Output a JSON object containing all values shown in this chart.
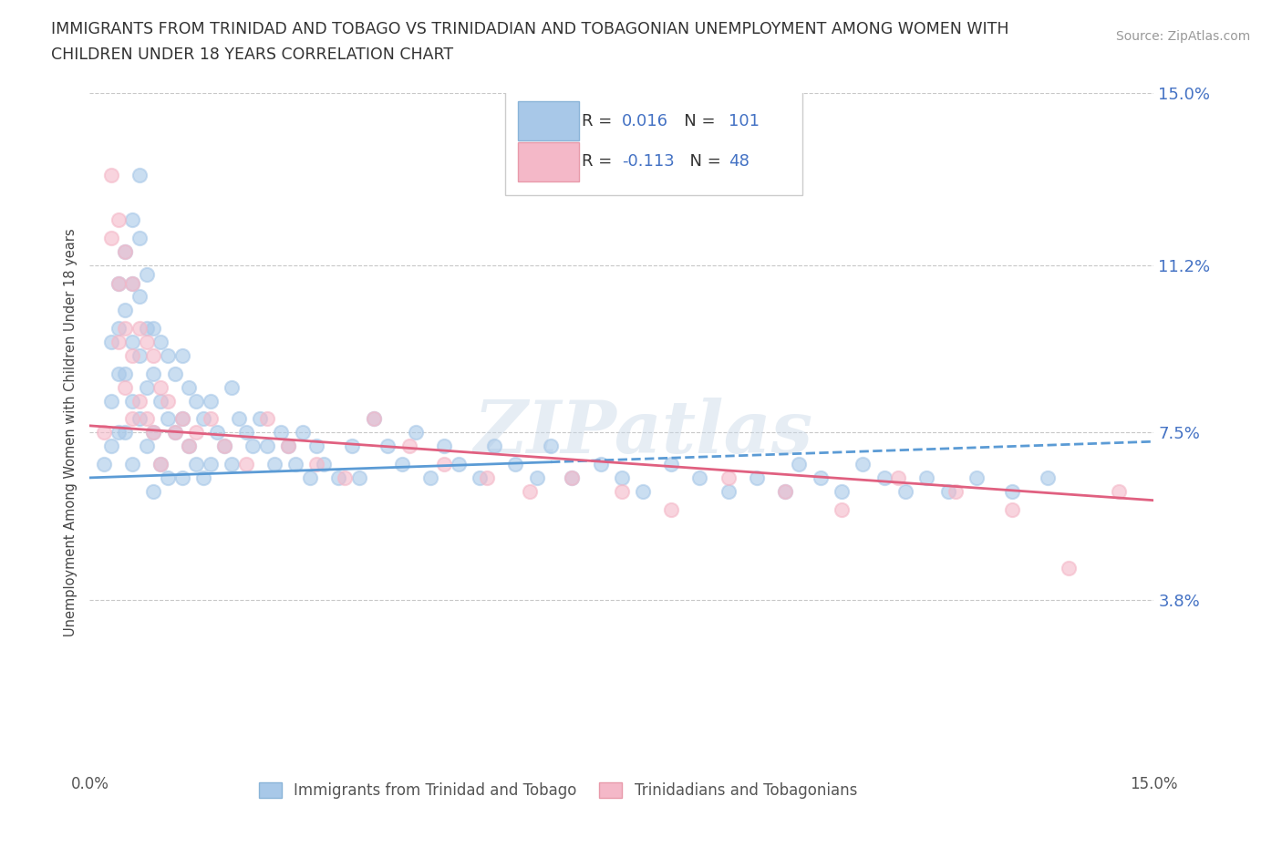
{
  "title_line1": "IMMIGRANTS FROM TRINIDAD AND TOBAGO VS TRINIDADIAN AND TOBAGONIAN UNEMPLOYMENT AMONG WOMEN WITH",
  "title_line2": "CHILDREN UNDER 18 YEARS CORRELATION CHART",
  "source": "Source: ZipAtlas.com",
  "ylabel": "Unemployment Among Women with Children Under 18 years",
  "xlim": [
    0.0,
    0.15
  ],
  "ylim": [
    0.0,
    0.15
  ],
  "ytick_positions": [
    0.0,
    0.038,
    0.075,
    0.112,
    0.15
  ],
  "ytick_labels": [
    "",
    "3.8%",
    "7.5%",
    "11.2%",
    "15.0%"
  ],
  "xtick_positions": [
    0.0,
    0.15
  ],
  "xtick_labels": [
    "0.0%",
    "15.0%"
  ],
  "hline_positions": [
    0.15,
    0.112,
    0.075,
    0.038
  ],
  "blue_line_color": "#5b9bd5",
  "pink_line_color": "#e06080",
  "blue_dot_color": "#a8c8e8",
  "pink_dot_color": "#f4b8c8",
  "R_blue": 0.016,
  "N_blue": 101,
  "R_pink": -0.113,
  "N_pink": 48,
  "watermark": "ZIPatlas",
  "blue_scatter_x": [
    0.002,
    0.003,
    0.003,
    0.003,
    0.004,
    0.004,
    0.004,
    0.004,
    0.005,
    0.005,
    0.005,
    0.005,
    0.006,
    0.006,
    0.006,
    0.006,
    0.006,
    0.007,
    0.007,
    0.007,
    0.007,
    0.007,
    0.008,
    0.008,
    0.008,
    0.008,
    0.009,
    0.009,
    0.009,
    0.009,
    0.01,
    0.01,
    0.01,
    0.011,
    0.011,
    0.011,
    0.012,
    0.012,
    0.013,
    0.013,
    0.013,
    0.014,
    0.014,
    0.015,
    0.015,
    0.016,
    0.016,
    0.017,
    0.017,
    0.018,
    0.019,
    0.02,
    0.02,
    0.021,
    0.022,
    0.023,
    0.024,
    0.025,
    0.026,
    0.027,
    0.028,
    0.029,
    0.03,
    0.031,
    0.032,
    0.033,
    0.035,
    0.037,
    0.038,
    0.04,
    0.042,
    0.044,
    0.046,
    0.048,
    0.05,
    0.052,
    0.055,
    0.057,
    0.06,
    0.063,
    0.065,
    0.068,
    0.072,
    0.075,
    0.078,
    0.082,
    0.086,
    0.09,
    0.094,
    0.098,
    0.1,
    0.103,
    0.106,
    0.109,
    0.112,
    0.115,
    0.118,
    0.121,
    0.125,
    0.13,
    0.135
  ],
  "blue_scatter_y": [
    0.068,
    0.095,
    0.082,
    0.072,
    0.108,
    0.098,
    0.088,
    0.075,
    0.115,
    0.102,
    0.088,
    0.075,
    0.122,
    0.108,
    0.095,
    0.082,
    0.068,
    0.132,
    0.118,
    0.105,
    0.092,
    0.078,
    0.11,
    0.098,
    0.085,
    0.072,
    0.098,
    0.088,
    0.075,
    0.062,
    0.095,
    0.082,
    0.068,
    0.092,
    0.078,
    0.065,
    0.088,
    0.075,
    0.092,
    0.078,
    0.065,
    0.085,
    0.072,
    0.082,
    0.068,
    0.078,
    0.065,
    0.082,
    0.068,
    0.075,
    0.072,
    0.085,
    0.068,
    0.078,
    0.075,
    0.072,
    0.078,
    0.072,
    0.068,
    0.075,
    0.072,
    0.068,
    0.075,
    0.065,
    0.072,
    0.068,
    0.065,
    0.072,
    0.065,
    0.078,
    0.072,
    0.068,
    0.075,
    0.065,
    0.072,
    0.068,
    0.065,
    0.072,
    0.068,
    0.065,
    0.072,
    0.065,
    0.068,
    0.065,
    0.062,
    0.068,
    0.065,
    0.062,
    0.065,
    0.062,
    0.068,
    0.065,
    0.062,
    0.068,
    0.065,
    0.062,
    0.065,
    0.062,
    0.065,
    0.062,
    0.065
  ],
  "pink_scatter_x": [
    0.002,
    0.003,
    0.003,
    0.004,
    0.004,
    0.004,
    0.005,
    0.005,
    0.005,
    0.006,
    0.006,
    0.006,
    0.007,
    0.007,
    0.008,
    0.008,
    0.009,
    0.009,
    0.01,
    0.01,
    0.011,
    0.012,
    0.013,
    0.014,
    0.015,
    0.017,
    0.019,
    0.022,
    0.025,
    0.028,
    0.032,
    0.036,
    0.04,
    0.045,
    0.05,
    0.056,
    0.062,
    0.068,
    0.075,
    0.082,
    0.09,
    0.098,
    0.106,
    0.114,
    0.122,
    0.13,
    0.138,
    0.145
  ],
  "pink_scatter_y": [
    0.075,
    0.132,
    0.118,
    0.122,
    0.108,
    0.095,
    0.115,
    0.098,
    0.085,
    0.108,
    0.092,
    0.078,
    0.098,
    0.082,
    0.095,
    0.078,
    0.092,
    0.075,
    0.085,
    0.068,
    0.082,
    0.075,
    0.078,
    0.072,
    0.075,
    0.078,
    0.072,
    0.068,
    0.078,
    0.072,
    0.068,
    0.065,
    0.078,
    0.072,
    0.068,
    0.065,
    0.062,
    0.065,
    0.062,
    0.058,
    0.065,
    0.062,
    0.058,
    0.065,
    0.062,
    0.058,
    0.045,
    0.062
  ],
  "blue_line_solid_end": 0.065,
  "pink_line_start_y": 0.076,
  "pink_line_end_y": 0.06,
  "blue_line_start_y": 0.065,
  "blue_line_end_y": 0.072
}
